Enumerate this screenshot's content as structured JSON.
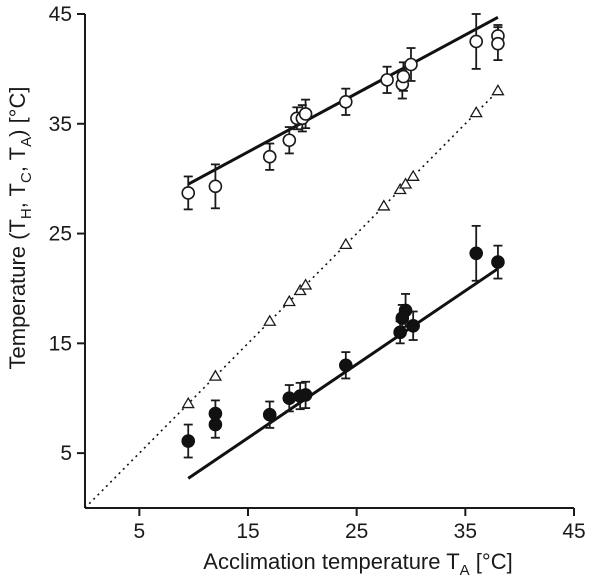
{
  "chart_data": {
    "type": "scatter",
    "xlabel": "Acclimation temperature T",
    "xlabel_sub": "A",
    "xlabel_unit": " [°C]",
    "ylabel": {
      "prefix": "Temperature (T",
      "sub1": "H",
      "sep1": ", T",
      "sub2": "C",
      "sep2": ", T",
      "sub3": "A",
      "suffix": ")  [°C]"
    },
    "xlim": [
      0,
      45
    ],
    "ylim": [
      0,
      45
    ],
    "xticks": [
      5,
      15,
      25,
      35,
      45
    ],
    "yticks": [
      5,
      15,
      25,
      35,
      45
    ],
    "series": [
      {
        "marker": "open-circle",
        "x": [
          9.5,
          12,
          17,
          18.8,
          19.5,
          20,
          20.3,
          24,
          27.8,
          29.2,
          29.3,
          30,
          36,
          38,
          38
        ],
        "y": [
          28.7,
          29.3,
          32,
          33.5,
          35.5,
          35.5,
          35.9,
          37,
          39,
          38.6,
          39.3,
          40.4,
          42.5,
          43,
          42.3
        ],
        "err": [
          1.5,
          2.0,
          1.2,
          1.2,
          1.0,
          1.2,
          1.3,
          1.2,
          1.2,
          1.3,
          1.3,
          1.5,
          2.5,
          1.0,
          1.5
        ]
      },
      {
        "marker": "filled-circle",
        "x": [
          9.5,
          12,
          12,
          17,
          18.8,
          19.8,
          20.3,
          24,
          29,
          29.2,
          29.5,
          30.2,
          36,
          38
        ],
        "y": [
          6.1,
          8.6,
          7.6,
          8.5,
          10,
          10.2,
          10.3,
          13,
          16,
          17.3,
          18,
          16.6,
          23.2,
          22.4
        ],
        "err": [
          1.5,
          1.2,
          1.2,
          1.2,
          1.2,
          1.2,
          1.2,
          1.2,
          1.0,
          1.2,
          1.5,
          1.3,
          2.5,
          1.5
        ]
      },
      {
        "marker": "open-triangle",
        "x": [
          9.5,
          12,
          17,
          18.8,
          19.8,
          20.3,
          24,
          27.5,
          29,
          29.5,
          30.2,
          36,
          38
        ],
        "y": [
          9.5,
          12,
          17,
          18.8,
          19.8,
          20.3,
          24,
          27.5,
          29,
          29.5,
          30.2,
          36,
          38
        ]
      }
    ],
    "fits": [
      {
        "style": "solid",
        "x": [
          9.5,
          38
        ],
        "y": [
          29.5,
          44.7
        ]
      },
      {
        "style": "solid",
        "x": [
          9.5,
          38
        ],
        "y": [
          2.7,
          21.8
        ]
      },
      {
        "style": "dotted",
        "x": [
          0,
          38
        ],
        "y": [
          0,
          38
        ]
      }
    ],
    "grid": false
  }
}
